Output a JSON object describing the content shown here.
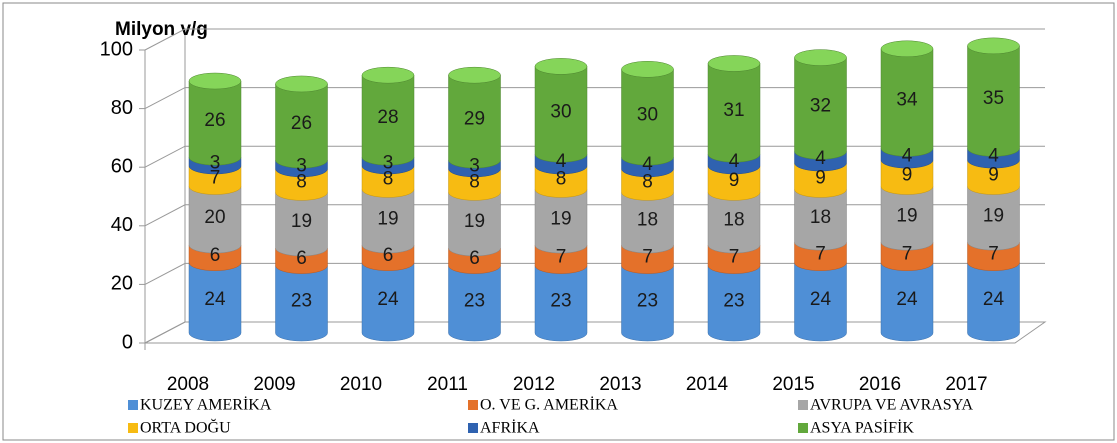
{
  "chart_data": {
    "type": "bar3d_stacked",
    "y_axis_label": "Milyon v/g",
    "categories": [
      "2008",
      "2009",
      "2010",
      "2011",
      "2012",
      "2013",
      "2014",
      "2015",
      "2016",
      "2017"
    ],
    "series": [
      {
        "name": "KUZEY AMERİKA",
        "color": "#4f8fd6",
        "values": [
          24,
          23,
          24,
          23,
          23,
          23,
          23,
          24,
          24,
          24
        ]
      },
      {
        "name": "O. VE G. AMERİKA",
        "color": "#e4712a",
        "values": [
          6,
          6,
          6,
          6,
          7,
          7,
          7,
          7,
          7,
          7
        ]
      },
      {
        "name": "AVRUPA VE AVRASYA",
        "color": "#a6a6a6",
        "values": [
          20,
          19,
          19,
          19,
          19,
          18,
          18,
          18,
          19,
          19
        ]
      },
      {
        "name": "ORTA DOĞU",
        "color": "#f7bb12",
        "values": [
          7,
          8,
          8,
          8,
          8,
          8,
          9,
          9,
          9,
          9
        ]
      },
      {
        "name": "AFRİKA",
        "color": "#2f62b0",
        "values": [
          3,
          3,
          3,
          3,
          4,
          4,
          4,
          4,
          4,
          4
        ]
      },
      {
        "name": "ASYA PASİFİK",
        "color": "#62a83c",
        "values": [
          26,
          26,
          28,
          29,
          30,
          30,
          31,
          32,
          34,
          35
        ]
      }
    ],
    "ylim": [
      0,
      100
    ],
    "yticks": [
      0,
      20,
      40,
      60,
      80,
      100
    ],
    "grid": true
  }
}
